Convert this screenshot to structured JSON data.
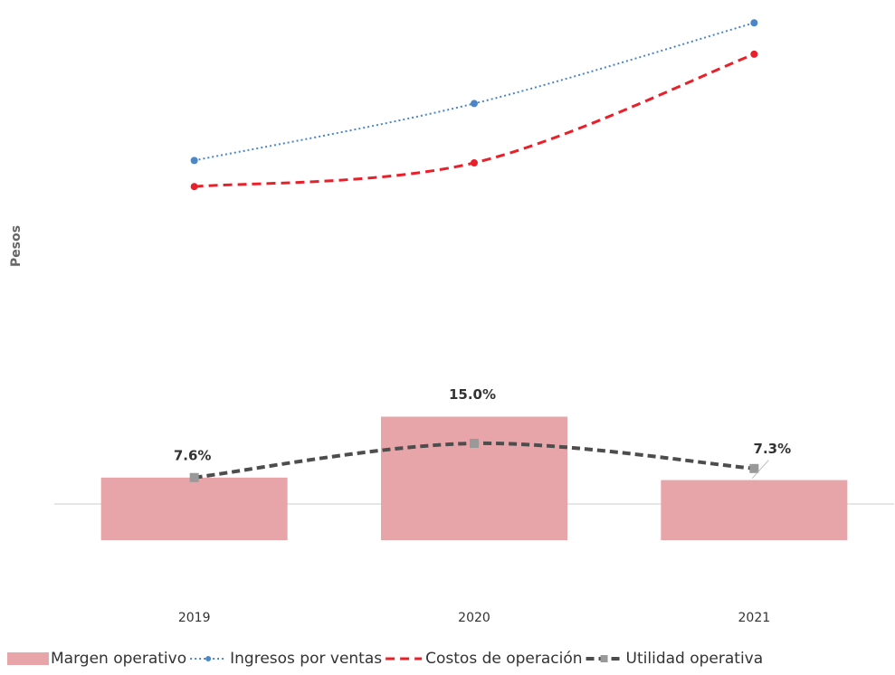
{
  "chart_data": {
    "type": "bar",
    "y_label": "Pesos",
    "categories": [
      "2019",
      "2020",
      "2021"
    ],
    "ylim": [
      0,
      110
    ],
    "y2lim": [
      0,
      63.4
    ],
    "series": [
      {
        "name": "Margen operativo",
        "type": "bar",
        "axis": "y2",
        "color": "#e8a5a9",
        "values": [
          7.6,
          15.0,
          7.3
        ],
        "value_labels": [
          "7.6%",
          "15.0%",
          "7.3%"
        ]
      },
      {
        "name": "Ingresos por ventas",
        "type": "line",
        "color": "#4a86c8",
        "values": [
          80,
          92,
          109
        ]
      },
      {
        "name": "Costos de operación",
        "type": "line",
        "color": "#e8202a",
        "values": [
          74.5,
          79.5,
          102.4
        ]
      },
      {
        "name": "Utilidad operativa",
        "type": "line",
        "color": "#4d4d4d",
        "values": [
          13.2,
          20.4,
          15.1
        ]
      }
    ]
  }
}
